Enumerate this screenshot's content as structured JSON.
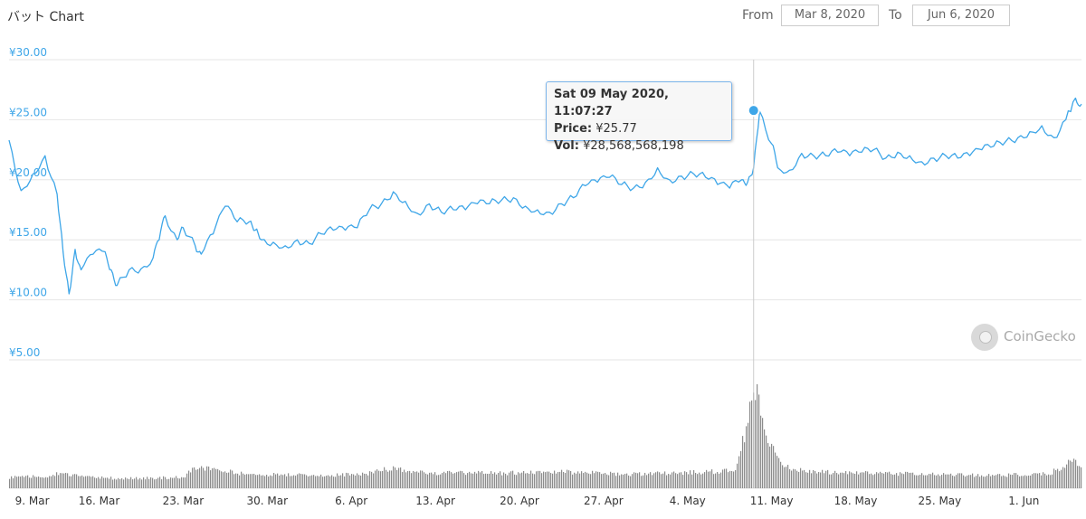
{
  "title": "バット Chart",
  "range": {
    "from_label": "From",
    "from_value": "Mar 8, 2020",
    "to_label": "To",
    "to_value": "Jun 6, 2020"
  },
  "tooltip": {
    "date": "Sat 09 May 2020, 11:07:27",
    "price_label": "Price:",
    "price_value": "¥25.77",
    "vol_label": "Vol:",
    "vol_value": "¥28,568,568,198"
  },
  "brand": "CoinGecko",
  "colors": {
    "line": "#3ea6e8",
    "volume": "#8c8c8c",
    "grid": "#e6e6e6",
    "crosshair": "#cccccc"
  },
  "chart_data": {
    "type": "line",
    "currency": "¥",
    "y_ticks": [
      "¥30.00",
      "¥25.00",
      "¥20.00",
      "¥15.00",
      "¥10.00",
      "¥5.00"
    ],
    "ylim": [
      5,
      30
    ],
    "x_ticks": [
      "9. Mar",
      "16. Mar",
      "23. Mar",
      "30. Mar",
      "6. Apr",
      "13. Apr",
      "20. Apr",
      "27. Apr",
      "4. May",
      "11. May",
      "18. May",
      "25. May",
      "1. Jun"
    ],
    "x_range_days": [
      8.5,
      97.8
    ],
    "price_series": {
      "x_day": [
        8.5,
        9.5,
        10.5,
        11.5,
        12.5,
        13,
        13.5,
        14,
        14.5,
        15.5,
        16.5,
        17,
        17.5,
        18.5,
        19.5,
        20.5,
        21,
        21.5,
        22.5,
        23,
        24,
        24.5,
        25.5,
        26.5,
        27.5,
        28.5,
        29,
        29.5,
        30.5,
        31.5,
        32.5,
        33.5,
        34.5,
        35.5,
        36.5,
        37.5,
        38.5,
        39.5,
        40.5,
        41.5,
        42.5,
        43.5,
        44.5,
        45.5,
        46.5,
        47.5,
        48.5,
        49.5,
        50.5,
        51.5,
        52.5,
        53.5,
        54.5,
        55.5,
        56.5,
        57.5,
        58.5,
        59.5,
        60.5,
        61.5,
        62.5,
        63.5,
        64.5,
        65.5,
        66.5,
        67.5,
        68.5,
        69.5,
        70,
        70.5,
        71,
        72,
        72.5,
        73.5,
        74.5,
        75.5,
        76.5,
        77.5,
        78.5,
        79.5,
        80.5,
        81.5,
        82.5,
        83.5,
        84.5,
        85.5,
        86.5,
        87.5,
        88.5,
        89.5,
        90.5,
        91.5,
        92.5,
        93.5,
        94.5,
        95.5,
        96.5,
        97.3,
        97.8
      ],
      "price": [
        23.3,
        19.1,
        20.5,
        22.0,
        18.8,
        14.0,
        10.5,
        14.2,
        12.5,
        13.8,
        14.0,
        12.5,
        11.2,
        12.5,
        12.6,
        13.5,
        15.0,
        17.0,
        15.0,
        16.0,
        14.5,
        13.8,
        15.5,
        17.8,
        16.5,
        16.5,
        15.8,
        15.0,
        14.8,
        14.5,
        15.0,
        14.7,
        15.5,
        15.8,
        15.8,
        16.0,
        17.5,
        18.0,
        19.0,
        18.2,
        17.2,
        18.0,
        17.3,
        17.5,
        17.5,
        18.0,
        18.0,
        18.3,
        18.5,
        17.8,
        17.5,
        17.3,
        18.0,
        18.5,
        19.5,
        19.8,
        20.2,
        19.6,
        19.3,
        19.8,
        21.0,
        20.0,
        20.3,
        20.5,
        20.2,
        19.6,
        19.3,
        20.0,
        19.8,
        21.0,
        25.7,
        23.0,
        21.0,
        20.8,
        22.2,
        22.0,
        22.0,
        22.3,
        22.0,
        22.3,
        22.5,
        21.8,
        22.3,
        22.0,
        21.5,
        21.8,
        22.0,
        21.8,
        22.0,
        22.5,
        22.8,
        23.2,
        23.5,
        24.0,
        24.5,
        23.5,
        25.0,
        26.8,
        26.3
      ],
      "hover_point": {
        "x_day": 70.5,
        "price": 25.77
      }
    },
    "volume_series": {
      "x_day": [
        8.5,
        12,
        12.5,
        15,
        18,
        23,
        24,
        28,
        35,
        38,
        40.5,
        41.5,
        44,
        50,
        55,
        60,
        64,
        69,
        69.8,
        70.5,
        71.5,
        73,
        75,
        80,
        85,
        90,
        95,
        97,
        97.8
      ],
      "relative_volume": [
        0.1,
        0.11,
        0.14,
        0.1,
        0.09,
        0.1,
        0.2,
        0.13,
        0.12,
        0.13,
        0.19,
        0.15,
        0.14,
        0.14,
        0.15,
        0.13,
        0.14,
        0.16,
        0.55,
        1.0,
        0.45,
        0.2,
        0.15,
        0.14,
        0.13,
        0.12,
        0.13,
        0.25,
        0.2
      ]
    }
  }
}
